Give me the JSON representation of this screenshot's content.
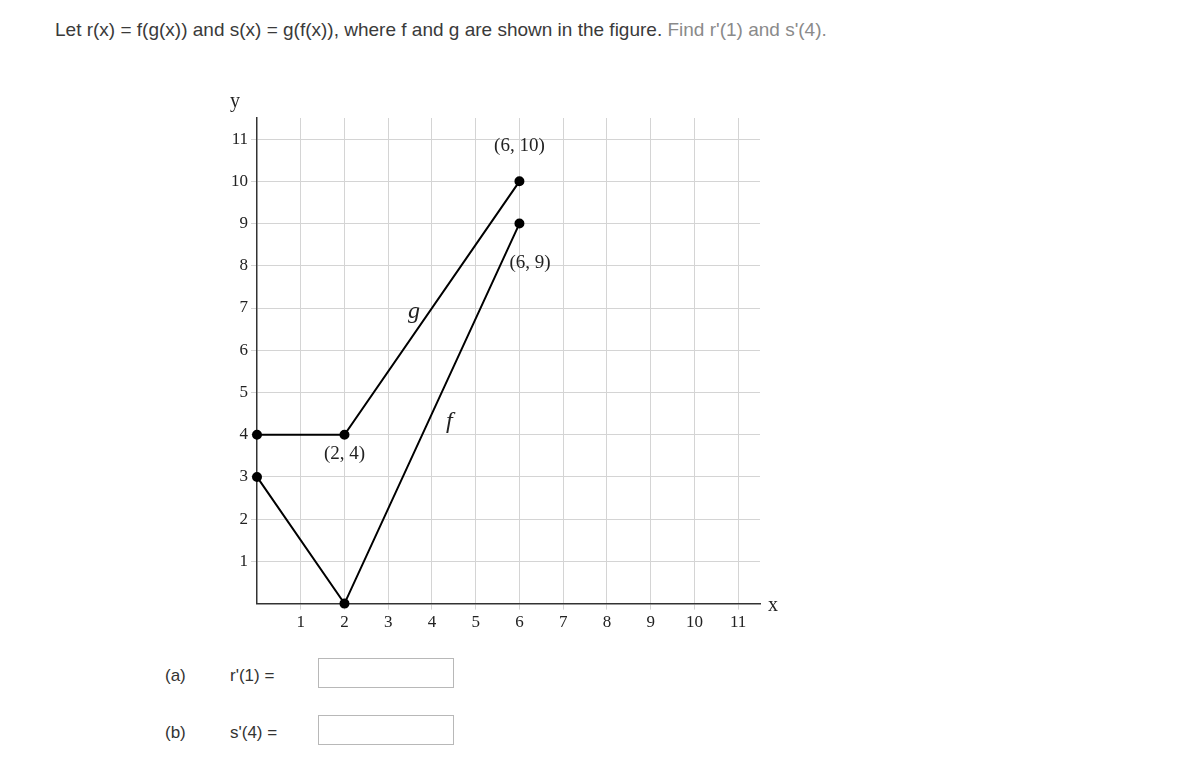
{
  "question": {
    "text": "Let r(x) = f(g(x)) and s(x) = g(f(x)), where f and g are shown in the figure.",
    "task": "Find r'(1) and s'(4)."
  },
  "chart_data": {
    "type": "line",
    "x_label": "x",
    "y_label": "y",
    "xlim": [
      0,
      11.5
    ],
    "ylim": [
      0,
      11.5
    ],
    "xticks": [
      1,
      2,
      3,
      4,
      5,
      6,
      7,
      8,
      9,
      10,
      11
    ],
    "yticks": [
      1,
      2,
      3,
      4,
      5,
      6,
      7,
      8,
      9,
      10,
      11
    ],
    "grid": true,
    "series": [
      {
        "name": "g",
        "color": "#000000",
        "marker": "circle",
        "line_style": "solid",
        "x": [
          0,
          2,
          6
        ],
        "values": [
          4,
          4,
          10
        ],
        "point_labels": [
          null,
          "(2, 4)",
          "(6, 10)"
        ]
      },
      {
        "name": "f",
        "color": "#000000",
        "marker": "circle",
        "line_style": "solid",
        "x": [
          0,
          2,
          6
        ],
        "values": [
          3,
          0,
          9
        ],
        "point_labels": [
          null,
          null,
          "(6, 9)"
        ]
      }
    ]
  },
  "parts": [
    {
      "label": "(a)",
      "prompt": "r'(1) ="
    },
    {
      "label": "(b)",
      "prompt": "s'(4) ="
    }
  ]
}
